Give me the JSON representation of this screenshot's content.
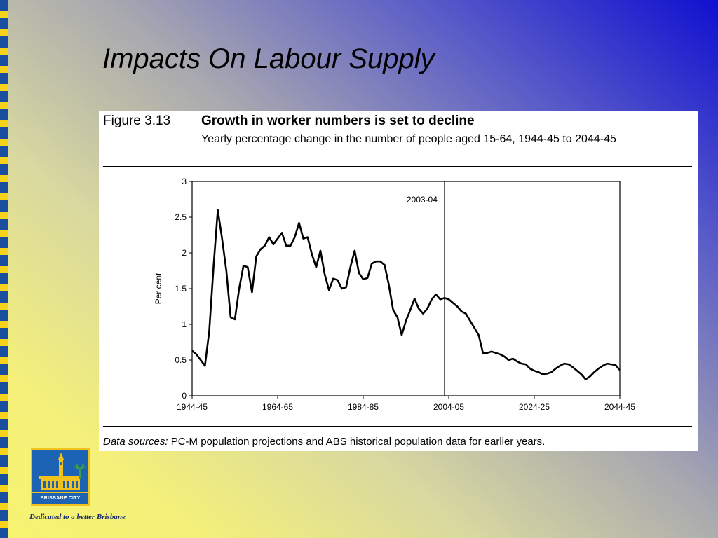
{
  "slide": {
    "title": "Impacts On Labour Supply",
    "tagline": "Dedicated to a better Brisbane",
    "logo_text": "BRISBANE CITY"
  },
  "figure": {
    "number": "Figure 3.13",
    "title": "Growth in worker numbers is set to decline",
    "subtitle": "Yearly percentage change in the number of people aged 15-64, 1944-45 to 2044-45",
    "source_label": "Data sources:",
    "source_text": "PC-M population projections and ABS historical population data for earlier years."
  },
  "chart_data": {
    "type": "line",
    "title": "Growth in worker numbers is set to decline",
    "xlabel": "",
    "ylabel": "Per cent",
    "ylim": [
      0,
      3
    ],
    "xlim": [
      1944,
      2044
    ],
    "yticks": [
      0,
      0.5,
      1,
      1.5,
      2,
      2.5,
      3
    ],
    "ytick_labels": [
      "0",
      "0.5",
      "1",
      "1.5",
      "2",
      "2.5",
      "3"
    ],
    "xticks": [
      1944,
      1964,
      1984,
      2004,
      2024,
      2044
    ],
    "xtick_labels": [
      "1944-45",
      "1964-65",
      "1984-85",
      "2004-05",
      "2024-25",
      "2044-45"
    ],
    "grid": false,
    "annotation": {
      "label": "2003-04",
      "x": 2003
    },
    "series": [
      {
        "color": "#000000",
        "x": [
          1944,
          1945,
          1946,
          1947,
          1948,
          1949,
          1950,
          1951,
          1952,
          1953,
          1954,
          1955,
          1956,
          1957,
          1958,
          1959,
          1960,
          1961,
          1962,
          1963,
          1964,
          1965,
          1966,
          1967,
          1968,
          1969,
          1970,
          1971,
          1972,
          1973,
          1974,
          1975,
          1976,
          1977,
          1978,
          1979,
          1980,
          1981,
          1982,
          1983,
          1984,
          1985,
          1986,
          1987,
          1988,
          1989,
          1990,
          1991,
          1992,
          1993,
          1994,
          1995,
          1996,
          1997,
          1998,
          1999,
          2000,
          2001,
          2002,
          2003,
          2004,
          2005,
          2006,
          2007,
          2008,
          2009,
          2010,
          2011,
          2012,
          2013,
          2014,
          2015,
          2016,
          2017,
          2018,
          2019,
          2020,
          2021,
          2022,
          2023,
          2024,
          2025,
          2026,
          2027,
          2028,
          2029,
          2030,
          2031,
          2032,
          2033,
          2034,
          2035,
          2036,
          2037,
          2038,
          2039,
          2040,
          2041,
          2042,
          2043,
          2044
        ],
        "values": [
          0.63,
          0.58,
          0.5,
          0.42,
          0.9,
          1.8,
          2.6,
          2.2,
          1.75,
          1.1,
          1.07,
          1.5,
          1.82,
          1.8,
          1.45,
          1.95,
          2.05,
          2.1,
          2.22,
          2.12,
          2.2,
          2.28,
          2.1,
          2.1,
          2.22,
          2.42,
          2.2,
          2.22,
          1.98,
          1.8,
          2.03,
          1.7,
          1.48,
          1.64,
          1.62,
          1.5,
          1.52,
          1.8,
          2.03,
          1.72,
          1.63,
          1.65,
          1.85,
          1.88,
          1.88,
          1.83,
          1.55,
          1.2,
          1.1,
          0.85,
          1.05,
          1.2,
          1.36,
          1.22,
          1.15,
          1.22,
          1.35,
          1.42,
          1.35,
          1.37,
          1.35,
          1.3,
          1.25,
          1.18,
          1.15,
          1.05,
          0.95,
          0.85,
          0.6,
          0.6,
          0.62,
          0.6,
          0.58,
          0.55,
          0.5,
          0.52,
          0.48,
          0.45,
          0.44,
          0.38,
          0.35,
          0.33,
          0.3,
          0.31,
          0.33,
          0.38,
          0.42,
          0.45,
          0.44,
          0.4,
          0.35,
          0.3,
          0.23,
          0.27,
          0.33,
          0.38,
          0.42,
          0.45,
          0.44,
          0.43,
          0.36
        ]
      }
    ]
  },
  "colors": {
    "stripe_blue": "#1a4fa0",
    "stripe_yellow": "#f6d21a",
    "logo_blue": "#1c63b4",
    "tagline": "#1a2a6c"
  }
}
